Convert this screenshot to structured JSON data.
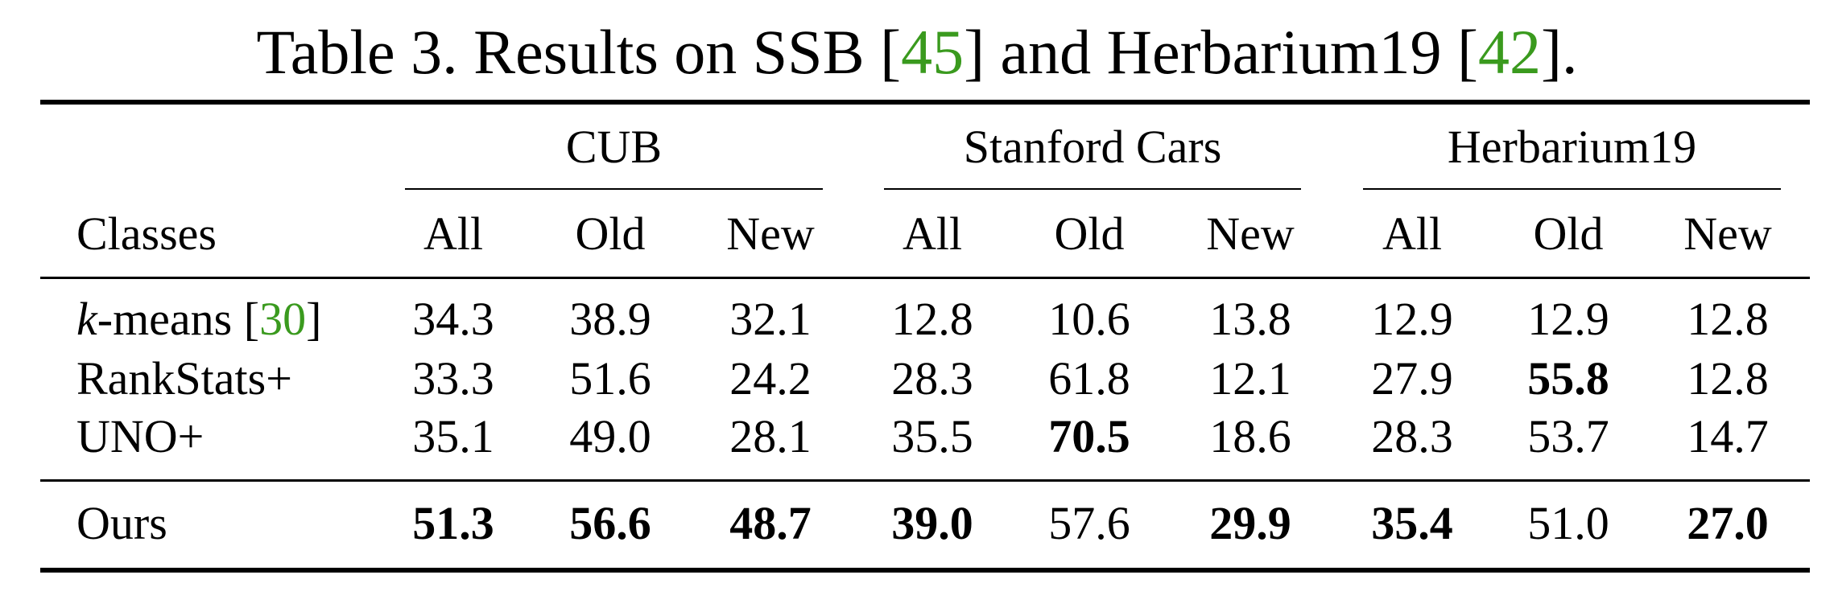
{
  "caption": {
    "prefix": "Table 3. Results on SSB [",
    "ref1": "45",
    "middle": "] and Herbarium19 [",
    "ref2": "42",
    "suffix": "]."
  },
  "table": {
    "groups": [
      "CUB",
      "Stanford Cars",
      "Herbarium19"
    ],
    "row_header": "Classes",
    "subcols": [
      "All",
      "Old",
      "New",
      "All",
      "Old",
      "New",
      "All",
      "Old",
      "New"
    ],
    "rows": [
      {
        "method_italic": "k",
        "method": "-means [",
        "method_ref": "30",
        "method_close": "]",
        "values": [
          "34.3",
          "38.9",
          "32.1",
          "12.8",
          "10.6",
          "13.8",
          "12.9",
          "12.9",
          "12.8"
        ],
        "bold": [
          false,
          false,
          false,
          false,
          false,
          false,
          false,
          false,
          false
        ]
      },
      {
        "method": "RankStats+",
        "values": [
          "33.3",
          "51.6",
          "24.2",
          "28.3",
          "61.8",
          "12.1",
          "27.9",
          "55.8",
          "12.8"
        ],
        "bold": [
          false,
          false,
          false,
          false,
          false,
          false,
          false,
          true,
          false
        ]
      },
      {
        "method": "UNO+",
        "values": [
          "35.1",
          "49.0",
          "28.1",
          "35.5",
          "70.5",
          "18.6",
          "28.3",
          "53.7",
          "14.7"
        ],
        "bold": [
          false,
          false,
          false,
          false,
          true,
          false,
          false,
          false,
          false
        ]
      },
      {
        "method": "Ours",
        "values": [
          "51.3",
          "56.6",
          "48.7",
          "39.0",
          "57.6",
          "29.9",
          "35.4",
          "51.0",
          "27.0"
        ],
        "bold": [
          true,
          true,
          true,
          true,
          false,
          true,
          true,
          false,
          true
        ]
      }
    ]
  }
}
